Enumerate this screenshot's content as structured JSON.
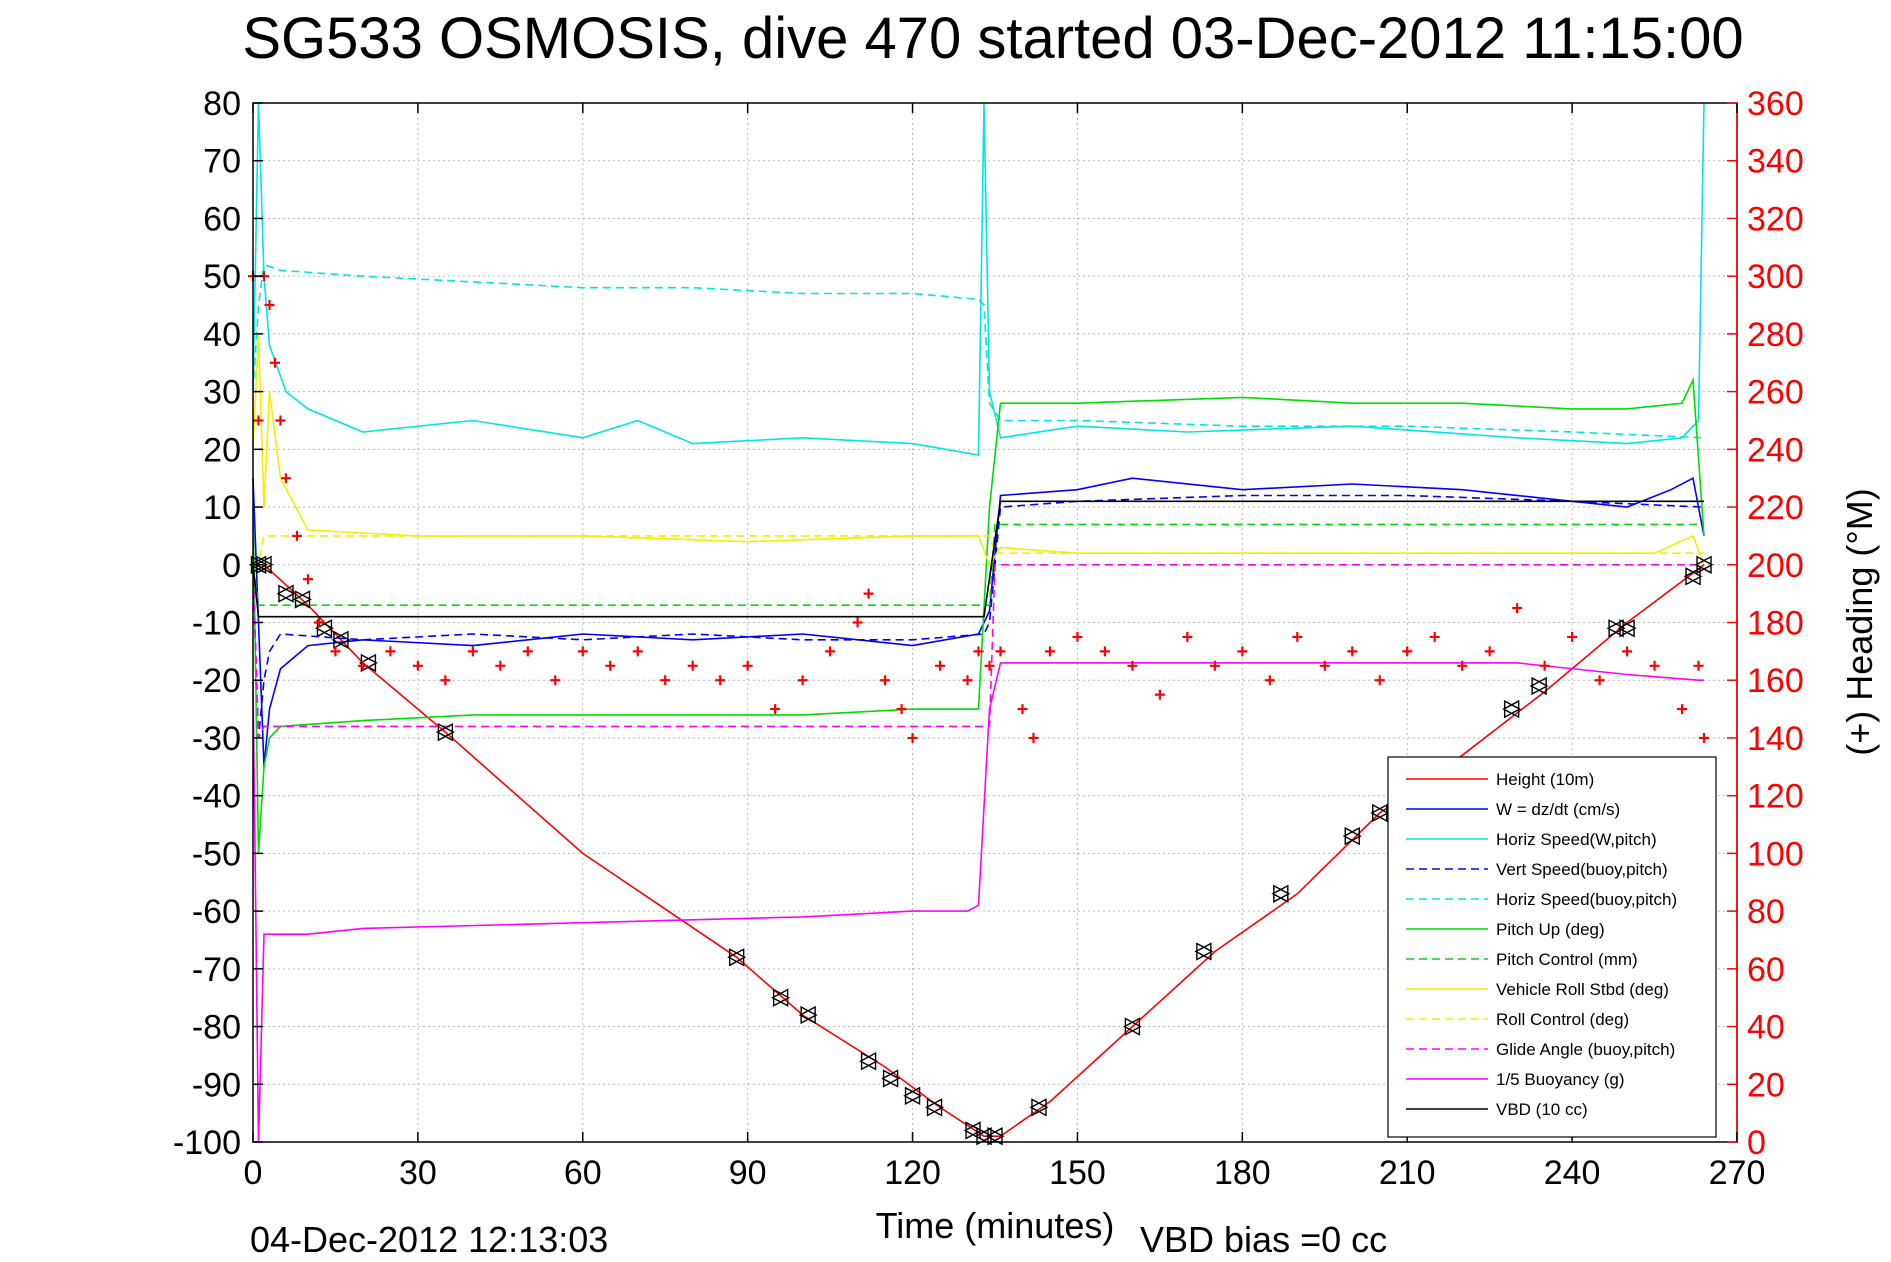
{
  "chart_data": {
    "type": "line",
    "title": "SG533 OSMOSIS, dive 470 started 03-Dec-2012 11:15:00",
    "xlabel": "Time (minutes)",
    "ylabel": "",
    "y2label": "(+) Heading (°M)",
    "footer_left": "04-Dec-2012 12:13:03",
    "footer_right": "VBD bias =0 cc",
    "xlim": [
      0,
      270
    ],
    "ylim": [
      -100,
      80
    ],
    "y2lim": [
      0,
      360
    ],
    "xticks": [
      0,
      30,
      60,
      90,
      120,
      150,
      180,
      210,
      240,
      270
    ],
    "yticks": [
      80,
      70,
      60,
      50,
      40,
      30,
      20,
      10,
      0,
      -10,
      -20,
      -30,
      -40,
      -50,
      -60,
      -70,
      -80,
      -90,
      -100
    ],
    "y2ticks": [
      360,
      340,
      320,
      300,
      280,
      260,
      240,
      220,
      200,
      180,
      160,
      140,
      120,
      100,
      80,
      60,
      40,
      20,
      0
    ],
    "grid": true,
    "legend_position": "lower-right",
    "colors": {
      "height": "#ff0000",
      "w": "#0000ff",
      "horiz_speed": "#00e5e5",
      "vert_speed_buoy": "#0000ff",
      "horiz_speed_buoy": "#00e5e5",
      "pitch_up": "#00dd00",
      "pitch_control": "#00dd00",
      "vehicle_roll": "#f0f000",
      "roll_control": "#f0f000",
      "glide_angle": "#ff00ff",
      "buoyancy": "#ff00ff",
      "vbd": "#000000",
      "heading": "#ff0000"
    },
    "series": [
      {
        "name": "Height (10m)",
        "key": "height",
        "dash": false,
        "x": [
          0,
          2,
          10,
          20,
          35,
          60,
          88,
          100,
          115,
          125,
          133,
          136,
          145,
          160,
          175,
          190,
          205,
          220,
          235,
          250,
          264
        ],
        "y": [
          0,
          0,
          -7,
          -17,
          -29,
          -50,
          -68,
          -78,
          -87,
          -94,
          -99,
          -99,
          -93,
          -80,
          -67,
          -57,
          -43,
          -33,
          -22,
          -10,
          0
        ]
      },
      {
        "name": "W = dz/dt (cm/s)",
        "key": "w",
        "dash": false,
        "x": [
          0,
          1,
          2,
          3,
          5,
          10,
          20,
          40,
          60,
          80,
          100,
          120,
          132,
          134,
          136,
          150,
          160,
          180,
          200,
          220,
          240,
          250,
          258,
          262,
          264
        ],
        "y": [
          15,
          -10,
          -35,
          -25,
          -18,
          -14,
          -13,
          -14,
          -12,
          -13,
          -12,
          -14,
          -12,
          -8,
          12,
          13,
          15,
          13,
          14,
          13,
          11,
          10,
          13,
          15,
          5
        ]
      },
      {
        "name": "Horiz Speed(W,pitch)",
        "key": "horiz_speed",
        "dash": false,
        "x": [
          0,
          1,
          2,
          3,
          6,
          10,
          20,
          40,
          60,
          70,
          80,
          100,
          120,
          132,
          133,
          134,
          136,
          150,
          170,
          200,
          230,
          250,
          260,
          263,
          264
        ],
        "y": [
          30,
          80,
          50,
          38,
          30,
          27,
          23,
          25,
          22,
          25,
          21,
          22,
          21,
          19,
          80,
          30,
          22,
          24,
          23,
          24,
          22,
          21,
          22,
          25,
          80
        ]
      },
      {
        "name": "Vert Speed(buoy,pitch)",
        "key": "vert_speed_buoy",
        "dash": true,
        "x": [
          0,
          1,
          2,
          3,
          5,
          20,
          40,
          60,
          80,
          100,
          120,
          133,
          134,
          136,
          150,
          180,
          210,
          240,
          264
        ],
        "y": [
          0,
          -30,
          -20,
          -15,
          -12,
          -13,
          -12,
          -13,
          -12,
          -13,
          -13,
          -12,
          -10,
          10,
          11,
          12,
          12,
          11,
          10
        ]
      },
      {
        "name": "Horiz Speed(buoy,pitch)",
        "key": "horiz_speed_buoy",
        "dash": true,
        "x": [
          0,
          1,
          2,
          5,
          20,
          40,
          60,
          80,
          100,
          120,
          132,
          133,
          134,
          136,
          150,
          180,
          210,
          240,
          264
        ],
        "y": [
          30,
          45,
          52,
          51,
          50,
          49,
          48,
          48,
          47,
          47,
          46,
          45,
          28,
          25,
          25,
          24,
          24,
          23,
          22
        ]
      },
      {
        "name": "Pitch Up (deg)",
        "key": "pitch_up",
        "dash": false,
        "x": [
          0,
          1,
          2,
          3,
          5,
          20,
          40,
          60,
          80,
          100,
          120,
          132,
          134,
          136,
          150,
          180,
          200,
          220,
          240,
          250,
          260,
          262,
          264
        ],
        "y": [
          10,
          -50,
          -35,
          -30,
          -28,
          -27,
          -26,
          -26,
          -26,
          -26,
          -25,
          -25,
          10,
          28,
          28,
          29,
          28,
          28,
          27,
          27,
          28,
          32,
          5
        ]
      },
      {
        "name": "Pitch Control (mm)",
        "key": "pitch_control",
        "dash": true,
        "x": [
          0,
          1,
          2,
          3,
          134,
          135,
          136,
          264
        ],
        "y": [
          0,
          -7,
          -7,
          -7,
          -7,
          7,
          7,
          7
        ]
      },
      {
        "name": "Vehicle Roll Stbd (deg)",
        "key": "vehicle_roll",
        "dash": false,
        "x": [
          0,
          1,
          2,
          3,
          5,
          10,
          30,
          60,
          90,
          120,
          132,
          134,
          136,
          150,
          180,
          210,
          240,
          255,
          262,
          264
        ],
        "y": [
          20,
          40,
          10,
          30,
          15,
          6,
          5,
          5,
          4,
          5,
          5,
          0,
          3,
          2,
          2,
          2,
          2,
          2,
          5,
          0
        ]
      },
      {
        "name": "Roll Control (deg)",
        "key": "roll_control",
        "dash": true,
        "x": [
          0,
          1,
          2,
          3,
          134,
          135,
          136,
          264
        ],
        "y": [
          0,
          0,
          5,
          5,
          5,
          2,
          2,
          2
        ]
      },
      {
        "name": "Glide Angle (buoy,pitch)",
        "key": "glide_angle",
        "dash": true,
        "x": [
          0,
          1,
          2,
          3,
          5,
          134,
          135,
          264
        ],
        "y": [
          0,
          -30,
          -28,
          -28,
          -28,
          -28,
          0,
          0
        ]
      },
      {
        "name": "1/5 Buoyancy (g)",
        "key": "buoyancy",
        "dash": false,
        "x": [
          0,
          1,
          2,
          3,
          10,
          20,
          60,
          100,
          120,
          130,
          132,
          134,
          136,
          150,
          200,
          230,
          250,
          263,
          264
        ],
        "y": [
          -20,
          -100,
          -64,
          -64,
          -64,
          -63,
          -62,
          -61,
          -60,
          -60,
          -59,
          -25,
          -17,
          -17,
          -17,
          -17,
          -19,
          -20,
          -20
        ]
      },
      {
        "name": "VBD (10 cc)",
        "key": "vbd",
        "dash": false,
        "x": [
          0,
          1,
          2,
          3,
          131,
          133,
          136,
          264
        ],
        "y": [
          0,
          -9,
          -9,
          -9,
          -9,
          -9,
          11,
          11
        ]
      }
    ],
    "markers": {
      "name": "Height triangles",
      "x": [
        1,
        2,
        6,
        9,
        13,
        16,
        21,
        35,
        88,
        96,
        101,
        112,
        116,
        120,
        124,
        131,
        133,
        135,
        143,
        160,
        173,
        187,
        200,
        205,
        215,
        229,
        234,
        248,
        250,
        262,
        264
      ],
      "y": [
        0,
        0,
        -5,
        -6,
        -11,
        -13,
        -17,
        -29,
        -68,
        -75,
        -78,
        -86,
        -89,
        -92,
        -94,
        -98,
        -99,
        -99,
        -94,
        -80,
        -67,
        -57,
        -47,
        -43,
        -35,
        -25,
        -21,
        -11,
        -11,
        -2,
        0
      ]
    },
    "heading": {
      "name": "Heading",
      "x": [
        0,
        1,
        2,
        3,
        4,
        5,
        6,
        8,
        10,
        12,
        15,
        20,
        25,
        30,
        35,
        40,
        45,
        50,
        55,
        60,
        65,
        70,
        75,
        80,
        85,
        90,
        95,
        100,
        105,
        110,
        112,
        115,
        118,
        120,
        125,
        130,
        132,
        134,
        136,
        140,
        142,
        145,
        150,
        155,
        160,
        165,
        170,
        175,
        180,
        185,
        190,
        195,
        200,
        205,
        210,
        215,
        220,
        225,
        230,
        235,
        240,
        245,
        250,
        255,
        260,
        263,
        264
      ],
      "y": [
        300,
        250,
        300,
        290,
        270,
        250,
        230,
        210,
        195,
        180,
        170,
        165,
        170,
        165,
        160,
        170,
        165,
        170,
        160,
        170,
        165,
        170,
        160,
        165,
        160,
        165,
        150,
        160,
        170,
        180,
        190,
        160,
        150,
        140,
        165,
        160,
        170,
        165,
        170,
        150,
        140,
        170,
        175,
        170,
        165,
        155,
        175,
        165,
        170,
        160,
        175,
        165,
        170,
        160,
        170,
        175,
        165,
        170,
        185,
        165,
        175,
        160,
        170,
        165,
        150,
        165,
        140
      ]
    }
  }
}
